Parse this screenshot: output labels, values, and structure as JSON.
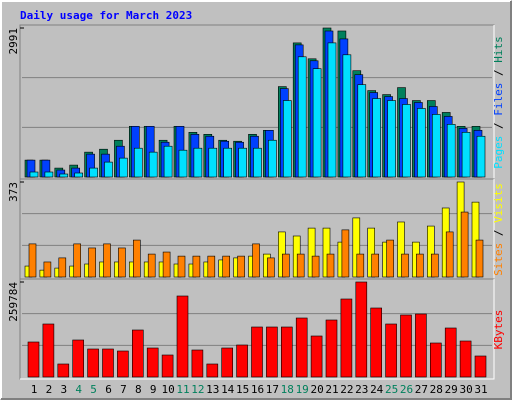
{
  "chart_data": [
    {
      "type": "bar",
      "title": "Daily usage for March 2023",
      "ylim": [
        0,
        2991
      ],
      "yticks": [
        2991
      ],
      "series": [
        {
          "name": "Hits",
          "color": "#00805c",
          "values": [
            339,
            339,
            179,
            239,
            499,
            558,
            738,
            1017,
            1017,
            738,
            1017,
            897,
            857,
            738,
            718,
            857,
            937,
            1815,
            2692,
            2373,
            2991,
            2931,
            2134,
            1735,
            1655,
            1795,
            1535,
            1535,
            1296,
            1017,
            1017
          ]
        },
        {
          "name": "Files",
          "color": "#0040ff",
          "values": [
            339,
            339,
            140,
            179,
            459,
            459,
            618,
            1017,
            1017,
            698,
            1017,
            857,
            818,
            718,
            698,
            818,
            937,
            1775,
            2652,
            2333,
            2931,
            2772,
            2054,
            1695,
            1615,
            1575,
            1496,
            1416,
            1216,
            977,
            937
          ]
        },
        {
          "name": "Pages",
          "color": "#00e0ff",
          "values": [
            100,
            100,
            60,
            80,
            179,
            299,
            379,
            578,
            499,
            618,
            538,
            578,
            578,
            578,
            578,
            578,
            738,
            1535,
            2413,
            2174,
            2692,
            2453,
            1854,
            1575,
            1535,
            1456,
            1376,
            1256,
            1057,
            897,
            818
          ]
        }
      ]
    },
    {
      "type": "bar",
      "ylim": [
        0,
        373
      ],
      "yticks": [
        373
      ],
      "series": [
        {
          "name": "Visits",
          "color": "#ffff00",
          "values": [
            43,
            27,
            35,
            43,
            51,
            59,
            59,
            59,
            59,
            59,
            51,
            51,
            59,
            67,
            75,
            82,
            90,
            177,
            161,
            192,
            192,
            137,
            232,
            192,
            137,
            216,
            137,
            200,
            271,
            373,
            294
          ]
        },
        {
          "name": "Sites",
          "color": "#ff8000",
          "values": [
            130,
            59,
            75,
            130,
            114,
            130,
            114,
            145,
            90,
            98,
            82,
            82,
            82,
            82,
            82,
            130,
            75,
            90,
            90,
            82,
            90,
            185,
            90,
            90,
            145,
            90,
            90,
            90,
            177,
            255,
            145
          ]
        }
      ]
    },
    {
      "type": "bar",
      "ylim": [
        0,
        259784
      ],
      "yticks": [
        259784
      ],
      "series": [
        {
          "name": "KBytes",
          "color": "#ff0000",
          "values": [
            95711,
            144934,
            35550,
            101180,
            76569,
            76569,
            71100,
            128526,
            79303,
            60161,
            221503,
            73834,
            35550,
            79303,
            87507,
            136730,
            136730,
            136730,
            161341,
            112119,
            155872,
            213299,
            259784,
            188687,
            144934,
            169545,
            172280,
            92976,
            133995,
            98446,
            57427
          ]
        }
      ],
      "categories": [
        "1",
        "2",
        "3",
        "4",
        "5",
        "6",
        "7",
        "8",
        "9",
        "10",
        "11",
        "12",
        "13",
        "14",
        "15",
        "16",
        "17",
        "18",
        "19",
        "20",
        "21",
        "22",
        "23",
        "24",
        "25",
        "26",
        "27",
        "28",
        "29",
        "30",
        "31"
      ],
      "category_colors": [
        "#000000",
        "#000000",
        "#000000",
        "#00805c",
        "#00805c",
        "#000000",
        "#000000",
        "#000000",
        "#000000",
        "#000000",
        "#00805c",
        "#00805c",
        "#000000",
        "#000000",
        "#000000",
        "#000000",
        "#000000",
        "#00805c",
        "#00805c",
        "#000000",
        "#000000",
        "#000000",
        "#000000",
        "#000000",
        "#00805c",
        "#00805c",
        "#000000",
        "#000000",
        "#000000",
        "#000000",
        "#000000"
      ]
    }
  ]
}
